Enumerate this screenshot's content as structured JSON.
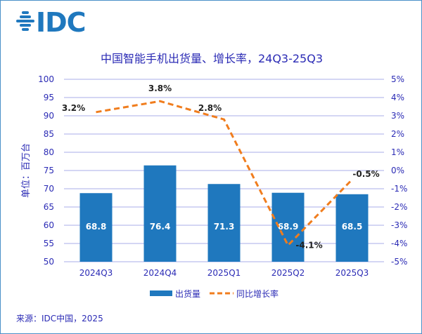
{
  "logo": {
    "text": "IDC",
    "color": "#1f78be"
  },
  "chart_data": {
    "type": "bar+line",
    "title": "中国智能手机出货量、增长率，24Q3-25Q3",
    "ylabel": "单位：百万台",
    "categories": [
      "2024Q3",
      "2024Q4",
      "2025Q1",
      "2025Q2",
      "2025Q3"
    ],
    "ylim": [
      50,
      100
    ],
    "yticks": [
      50,
      55,
      60,
      65,
      70,
      75,
      80,
      85,
      90,
      95,
      100
    ],
    "y2lim": [
      -5,
      5
    ],
    "y2ticks": [
      "-5%",
      "-4%",
      "-3%",
      "-2%",
      "-1%",
      "0%",
      "1%",
      "2%",
      "3%",
      "4%",
      "5%"
    ],
    "grid": false,
    "legend_placement": "bottom",
    "series": [
      {
        "name": "出货量",
        "type": "bar",
        "axis": "left",
        "values": [
          68.8,
          76.4,
          71.3,
          68.9,
          68.5
        ],
        "labels": [
          "68.8",
          "76.4",
          "71.3",
          "68.9",
          "68.5"
        ],
        "color": "#1f78be"
      },
      {
        "name": "同比增长率",
        "type": "line",
        "style": "dashed",
        "axis": "right",
        "values": [
          3.2,
          3.8,
          2.8,
          -4.1,
          -0.5
        ],
        "labels": [
          "3.2%",
          "3.8%",
          "2.8%",
          "-4.1%",
          "-0.5%"
        ],
        "color": "#f07d1e"
      }
    ]
  },
  "source": "来源：IDC中国，2025",
  "colors": {
    "text": "#2b2bb5",
    "axis": "#c5c8f0"
  }
}
